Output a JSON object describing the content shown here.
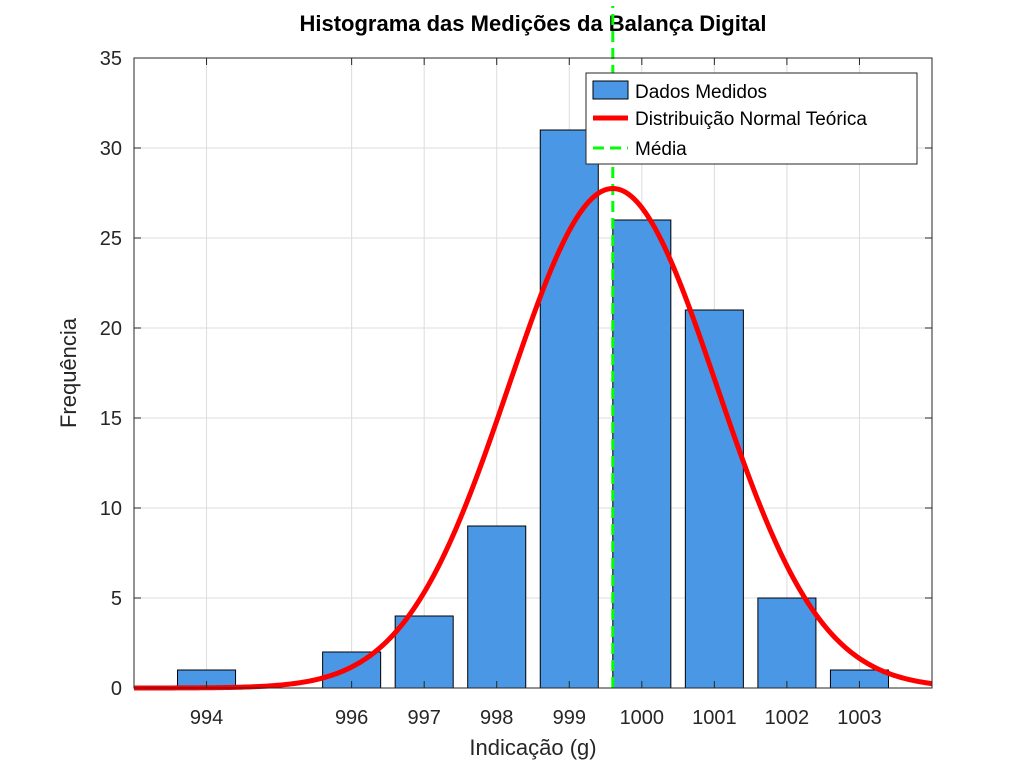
{
  "chart_data": {
    "type": "bar",
    "title": "Histograma das Medições da Balança Digital",
    "xlabel": "Indicação (g)",
    "ylabel": "Frequência",
    "xlim": [
      993,
      1004
    ],
    "ylim": [
      0,
      35
    ],
    "x_ticks": [
      994,
      996,
      997,
      998,
      999,
      1000,
      1001,
      1002,
      1003
    ],
    "y_ticks": [
      0,
      5,
      10,
      15,
      20,
      25,
      30,
      35
    ],
    "grid": true,
    "legend_position": "top-right",
    "bars": {
      "name": "Dados Medidos",
      "color": "#4a98e5",
      "x": [
        994,
        996,
        997,
        998,
        999,
        1000,
        1001,
        1002,
        1003
      ],
      "values": [
        1,
        2,
        4,
        9,
        31,
        26,
        21,
        5,
        1
      ]
    },
    "normal_curve": {
      "name": "Distribuição Normal Teórica",
      "color": "#ff0000",
      "mean": 999.6,
      "std": 1.43,
      "peak": 27.75
    },
    "mean_line": {
      "name": "Média",
      "color": "#00ff00",
      "x": 999.6
    }
  }
}
